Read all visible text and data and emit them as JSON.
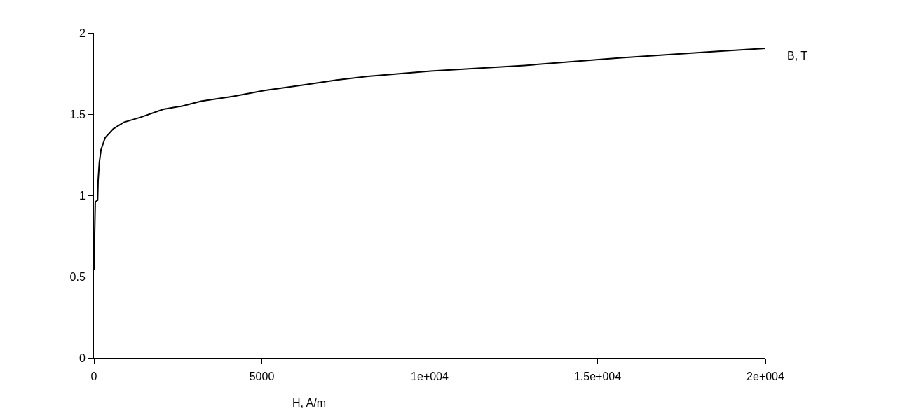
{
  "chart_data": {
    "type": "line",
    "xlabel": "H, A/m",
    "ylabel": "B, T",
    "x": [
      10,
      20,
      40,
      110,
      125,
      160,
      210,
      335,
      580,
      890,
      1380,
      2070,
      2630,
      3190,
      4160,
      5070,
      6250,
      7230,
      8160,
      10030,
      12830,
      15630,
      18430,
      20000
    ],
    "series": [
      {
        "color": "#000000",
        "values": [
          0.54,
          0.75,
          0.96,
          0.97,
          1.09,
          1.2,
          1.28,
          1.355,
          1.41,
          1.45,
          1.48,
          1.53,
          1.55,
          1.58,
          1.61,
          1.645,
          1.68,
          1.71,
          1.733,
          1.765,
          1.8,
          1.846,
          1.885,
          1.905
        ]
      }
    ],
    "xlim": [
      0,
      20000
    ],
    "xticks": [
      0,
      5000,
      {
        "value": 10000,
        "label": "1e+004"
      },
      {
        "value": 15000,
        "label": "1.5e+004"
      },
      {
        "value": 20000,
        "label": "2e+004"
      }
    ],
    "ylim": [
      0,
      2
    ],
    "yticks": [
      0,
      0.5,
      1,
      1.5,
      2
    ],
    "grid": false,
    "legend": false,
    "marker": "none",
    "line_style": "solid"
  }
}
